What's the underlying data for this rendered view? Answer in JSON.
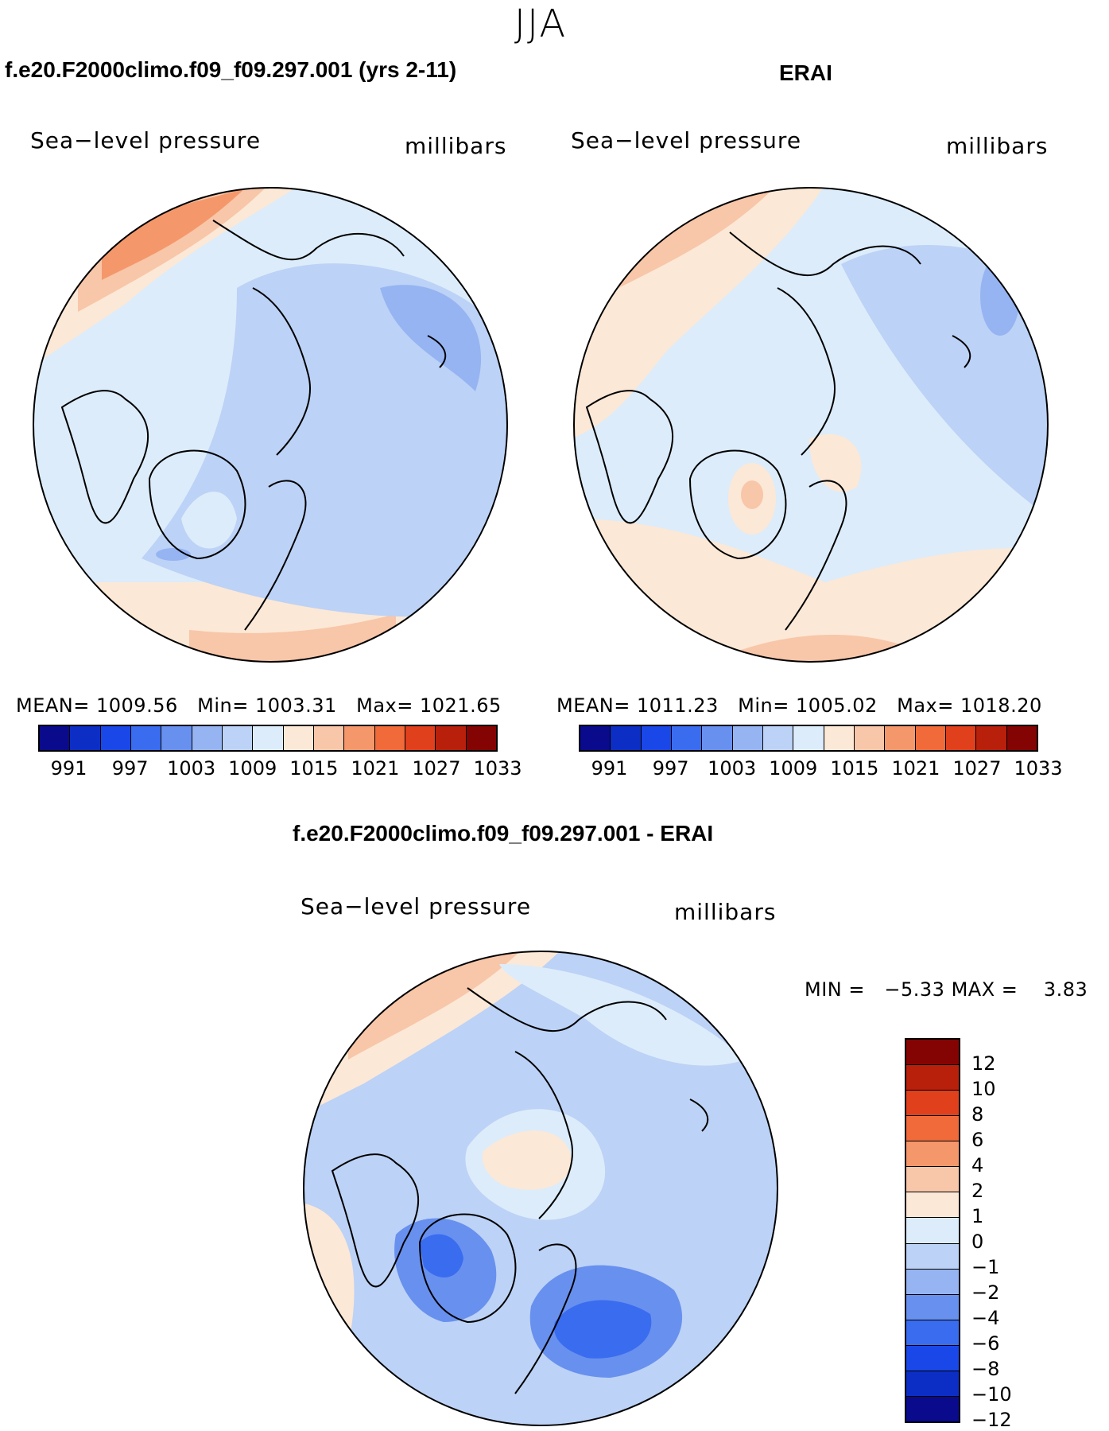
{
  "figure": {
    "season": "JJA",
    "field_name": "Sea−level pressure",
    "units": "millibars"
  },
  "panels": [
    {
      "id": "model",
      "title": "f.e20.F2000climo.f09_f09.297.001 (yrs 2-11)",
      "field": "Sea−level pressure",
      "units": "millibars",
      "stats": {
        "mean_label": "MEAN=",
        "mean": "1009.56",
        "min_label": "Min=",
        "min": "1003.31",
        "max_label": "Max=",
        "max": "1021.65"
      }
    },
    {
      "id": "obs",
      "title": "ERAI",
      "field": "Sea−level pressure",
      "units": "millibars",
      "stats": {
        "mean_label": "MEAN=",
        "mean": "1011.23",
        "min_label": "Min=",
        "min": "1005.02",
        "max_label": "Max=",
        "max": "1018.20"
      }
    },
    {
      "id": "diff",
      "title": "f.e20.F2000climo.f09_f09.297.001 - ERAI",
      "field": "Sea−level pressure",
      "units": "millibars",
      "stats": {
        "min_label": "MIN =",
        "min": "−5.33",
        "max_label": "MAX =",
        "max": "3.83"
      }
    }
  ],
  "abs_colorbar": {
    "colors": [
      "#0a0a8c",
      "#0c2ec4",
      "#1a48e8",
      "#3a6cf0",
      "#6890ee",
      "#96b4f2",
      "#bcd2f6",
      "#dcecfa",
      "#fce8d6",
      "#f8c6a8",
      "#f4986c",
      "#f06a3a",
      "#e0401c",
      "#b8200c",
      "#840404"
    ],
    "tick_labels": [
      "991",
      "997",
      "1003",
      "1009",
      "1015",
      "1021",
      "1027",
      "1033"
    ]
  },
  "diff_colorbar": {
    "colors": [
      "#840404",
      "#b8200c",
      "#e0401c",
      "#f06a3a",
      "#f4986c",
      "#f8c6a8",
      "#fce8d6",
      "#dcecfa",
      "#bcd2f6",
      "#96b4f2",
      "#6890ee",
      "#3a6cf0",
      "#1a48e8",
      "#0c2ec4",
      "#0a0a8c"
    ],
    "tick_labels": [
      "12",
      "10",
      "8",
      "6",
      "4",
      "2",
      "1",
      "0",
      "−1",
      "−2",
      "−4",
      "−6",
      "−8",
      "−10",
      "−12"
    ]
  },
  "map_colors": {
    "abs_background": "#dcecfa",
    "diff_background": "#bcd2f6"
  }
}
